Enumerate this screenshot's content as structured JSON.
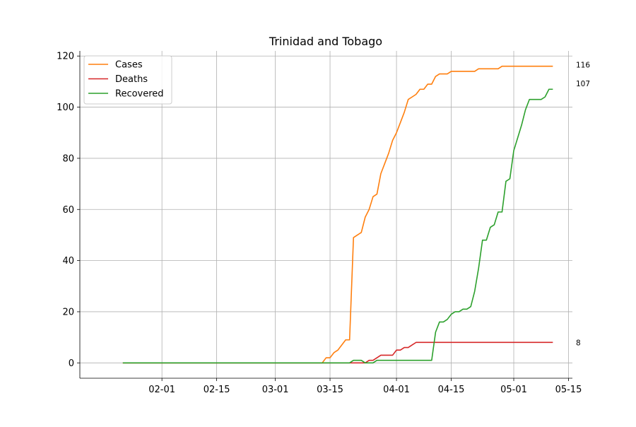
{
  "chart_data": {
    "type": "line",
    "title": "Trinidad and Tobago",
    "xlabel": "",
    "ylabel": "",
    "x_start": "2020-01-22",
    "ylim": [
      -6,
      122
    ],
    "xlim": [
      "2020-01-11",
      "2020-05-16"
    ],
    "x_ticks": [
      {
        "date": "2020-02-01",
        "label": "02-01"
      },
      {
        "date": "2020-02-15",
        "label": "02-15"
      },
      {
        "date": "2020-03-01",
        "label": "03-01"
      },
      {
        "date": "2020-03-15",
        "label": "03-15"
      },
      {
        "date": "2020-04-01",
        "label": "04-01"
      },
      {
        "date": "2020-04-15",
        "label": "04-15"
      },
      {
        "date": "2020-05-01",
        "label": "05-01"
      },
      {
        "date": "2020-05-15",
        "label": "05-15"
      }
    ],
    "y_ticks": [
      0,
      20,
      40,
      60,
      80,
      100,
      120
    ],
    "grid": true,
    "legend_position": "top-left",
    "series": [
      {
        "name": "Cases",
        "color": "#ff7f0e",
        "end_label": "116",
        "values": [
          0,
          0,
          0,
          0,
          0,
          0,
          0,
          0,
          0,
          0,
          0,
          0,
          0,
          0,
          0,
          0,
          0,
          0,
          0,
          0,
          0,
          0,
          0,
          0,
          0,
          0,
          0,
          0,
          0,
          0,
          0,
          0,
          0,
          0,
          0,
          0,
          0,
          0,
          0,
          0,
          0,
          0,
          0,
          0,
          0,
          0,
          0,
          0,
          0,
          0,
          0,
          0,
          2,
          2,
          4,
          5,
          7,
          9,
          9,
          49,
          50,
          51,
          57,
          60,
          65,
          66,
          74,
          78,
          82,
          87,
          90,
          94,
          98,
          103,
          104,
          105,
          107,
          107,
          109,
          109,
          112,
          113,
          113,
          113,
          114,
          114,
          114,
          114,
          114,
          114,
          114,
          115,
          115,
          115,
          115,
          115,
          115,
          116,
          116,
          116,
          116,
          116,
          116,
          116,
          116,
          116,
          116,
          116,
          116,
          116,
          116
        ]
      },
      {
        "name": "Deaths",
        "color": "#d62728",
        "end_label": "8",
        "values": [
          0,
          0,
          0,
          0,
          0,
          0,
          0,
          0,
          0,
          0,
          0,
          0,
          0,
          0,
          0,
          0,
          0,
          0,
          0,
          0,
          0,
          0,
          0,
          0,
          0,
          0,
          0,
          0,
          0,
          0,
          0,
          0,
          0,
          0,
          0,
          0,
          0,
          0,
          0,
          0,
          0,
          0,
          0,
          0,
          0,
          0,
          0,
          0,
          0,
          0,
          0,
          0,
          0,
          0,
          0,
          0,
          0,
          0,
          0,
          0,
          0,
          0,
          0,
          1,
          1,
          2,
          3,
          3,
          3,
          3,
          5,
          5,
          6,
          6,
          7,
          8,
          8,
          8,
          8,
          8,
          8,
          8,
          8,
          8,
          8,
          8,
          8,
          8,
          8,
          8,
          8,
          8,
          8,
          8,
          8,
          8,
          8,
          8,
          8,
          8,
          8,
          8,
          8,
          8,
          8,
          8,
          8,
          8,
          8,
          8,
          8
        ]
      },
      {
        "name": "Recovered",
        "color": "#2ca02c",
        "end_label": "107",
        "values": [
          0,
          0,
          0,
          0,
          0,
          0,
          0,
          0,
          0,
          0,
          0,
          0,
          0,
          0,
          0,
          0,
          0,
          0,
          0,
          0,
          0,
          0,
          0,
          0,
          0,
          0,
          0,
          0,
          0,
          0,
          0,
          0,
          0,
          0,
          0,
          0,
          0,
          0,
          0,
          0,
          0,
          0,
          0,
          0,
          0,
          0,
          0,
          0,
          0,
          0,
          0,
          0,
          0,
          0,
          0,
          0,
          0,
          0,
          0,
          1,
          1,
          1,
          0,
          0,
          0,
          1,
          1,
          1,
          1,
          1,
          1,
          1,
          1,
          1,
          1,
          1,
          1,
          1,
          1,
          1,
          12,
          16,
          16,
          17,
          19,
          20,
          20,
          21,
          21,
          22,
          28,
          37,
          48,
          48,
          53,
          54,
          59,
          59,
          71,
          72,
          83,
          88,
          93,
          99,
          103,
          103,
          103,
          103,
          104,
          107,
          107
        ]
      }
    ]
  }
}
